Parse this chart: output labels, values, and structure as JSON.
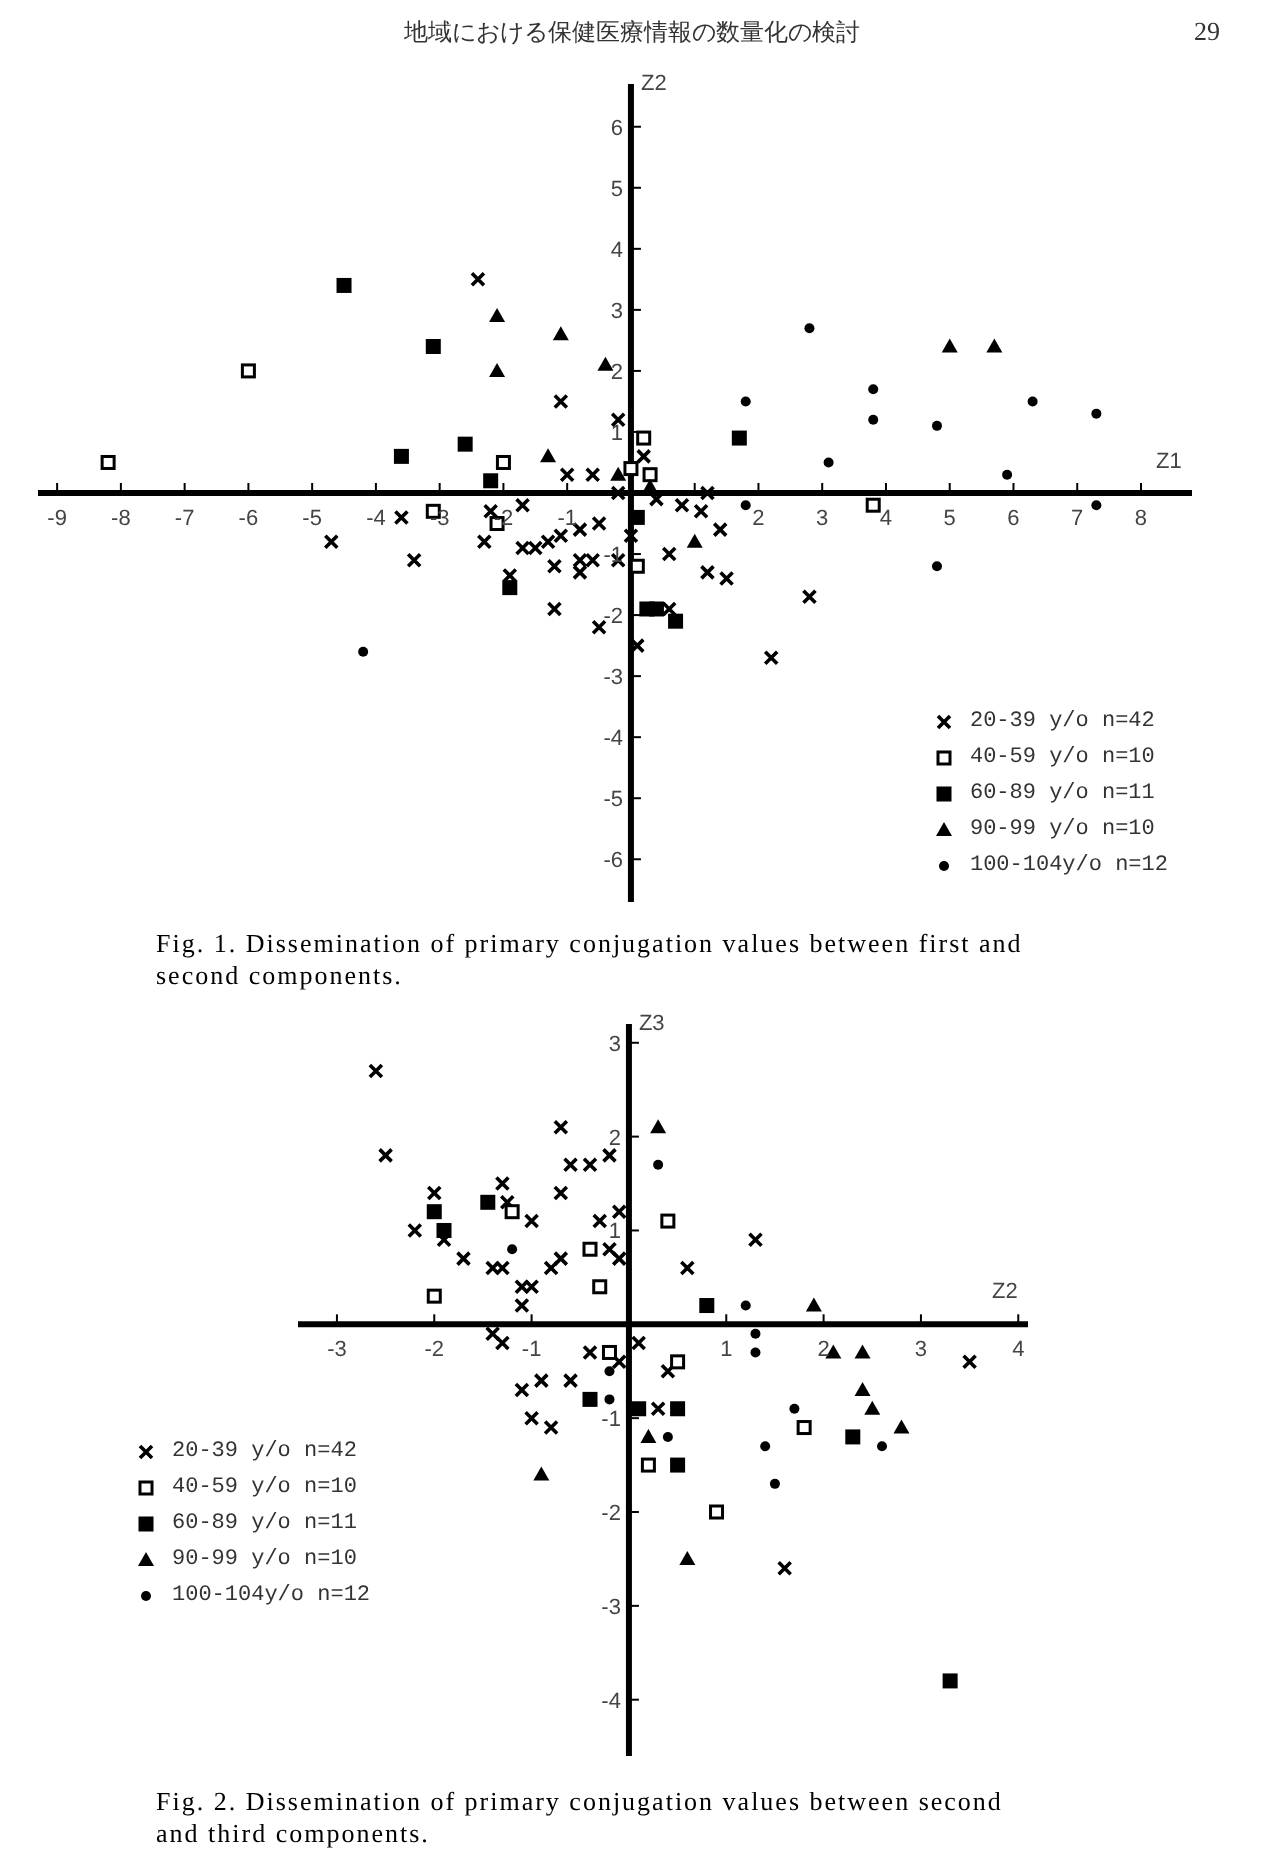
{
  "chart_data": [
    {
      "type": "scatter",
      "title": "地域における保健医療情報の数量化の検討",
      "subtitle": "Fig. 1.  Dissemination of primary conjugation values between first and second components.",
      "annotations": [
        "29"
      ],
      "xlabel": "Z1",
      "ylabel": "Z2",
      "xlim": [
        -9.3,
        8.8
      ],
      "ylim": [
        -6.7,
        6.7
      ],
      "xticks": [
        -9,
        -8,
        -7,
        -6,
        -5,
        -4,
        -3,
        -2,
        -1,
        {
          "value": 1,
          "label": null
        },
        2,
        3,
        4,
        5,
        6,
        7,
        8
      ],
      "yticks": [
        -6,
        -5,
        -4,
        -3,
        -2,
        -1,
        1,
        2,
        3,
        4,
        5,
        6
      ],
      "legend": "bottom right",
      "series": [
        {
          "name": "20-39 y/o n=42",
          "color": "#000000",
          "marker": "cross",
          "x": [
            -2.4,
            -1.1,
            -0.2,
            -1.0,
            -0.6,
            0.2,
            -4.7,
            -3.6,
            -3.4,
            -2.3,
            -2.2,
            -1.7,
            -1.7,
            -1.5,
            -1.3,
            -1.1,
            -0.8,
            -0.5,
            -1.2,
            -0.8,
            -0.6,
            -0.8,
            -0.2,
            -1.9,
            -1.2,
            -0.5,
            0.1,
            -0.2,
            0.4,
            0.8,
            1.1,
            1.2,
            0.6,
            1.4,
            1.2,
            1.5,
            0.6,
            2.8,
            2.2,
            0.0
          ],
          "values": [
            3.5,
            1.5,
            1.2,
            0.3,
            0.3,
            0.6,
            -0.8,
            -0.4,
            -1.1,
            -0.8,
            -0.3,
            -0.2,
            -0.9,
            -0.9,
            -0.8,
            -0.7,
            -0.6,
            -0.5,
            -1.2,
            -1.1,
            -1.1,
            -1.3,
            -1.1,
            -1.35,
            -1.9,
            -2.2,
            -2.5,
            0.0,
            -0.1,
            -0.2,
            -0.3,
            0.0,
            -1.0,
            -0.6,
            -1.3,
            -1.4,
            -1.9,
            -1.7,
            -2.7,
            -0.7
          ]
        },
        {
          "name": "40-59 y/o n=10",
          "color": "#ffffff",
          "marker": "square",
          "x": [
            -8.2,
            -6.0,
            -2.0,
            -3.1,
            -2.1,
            0.2,
            0.0,
            0.3,
            0.1,
            3.8
          ],
          "values": [
            0.5,
            2.0,
            0.5,
            -0.3,
            -0.5,
            0.9,
            0.4,
            0.3,
            -1.2,
            -0.2
          ]
        },
        {
          "name": "60-89 y/o n=11",
          "color": "#000000",
          "marker": "square",
          "x": [
            -4.5,
            -3.1,
            -2.6,
            -3.6,
            -2.2,
            -1.9,
            0.1,
            0.25,
            0.4,
            0.7,
            1.7
          ],
          "values": [
            3.4,
            2.4,
            0.8,
            0.6,
            0.2,
            -1.55,
            -0.4,
            -1.9,
            -1.9,
            -2.1,
            0.9
          ]
        },
        {
          "name": "90-99 y/o n=10",
          "color": "#000000",
          "marker": "triangle",
          "x": [
            -2.1,
            -1.1,
            -2.1,
            -0.4,
            -1.3,
            -0.2,
            0.3,
            1.0,
            5.0,
            5.7
          ],
          "values": [
            2.9,
            2.6,
            2.0,
            2.1,
            0.6,
            0.3,
            0.1,
            -0.8,
            2.4,
            2.4
          ]
        },
        {
          "name": "100-104y/o n=12",
          "color": "#000000",
          "marker": "circle",
          "x": [
            -4.2,
            2.8,
            1.8,
            3.1,
            3.8,
            3.8,
            4.8,
            6.3,
            7.3,
            5.9,
            7.3,
            4.8,
            1.8
          ],
          "values": [
            -2.6,
            2.7,
            1.5,
            0.5,
            1.7,
            1.2,
            1.1,
            1.5,
            1.3,
            0.3,
            -0.2,
            -1.2,
            -0.2
          ]
        }
      ]
    },
    {
      "type": "scatter",
      "subtitle": "Fig. 2.  Dissemination of primary conjugation values between second and third components.",
      "xlabel": "Z2",
      "ylabel": "Z3",
      "xlim": [
        -3.4,
        4.1
      ],
      "ylim": [
        -4.6,
        3.2
      ],
      "xticks": [
        -3,
        -2,
        -1,
        1,
        2,
        3,
        4
      ],
      "yticks": [
        -4,
        -3,
        -2,
        -1,
        1,
        2,
        3
      ],
      "legend": "bottom left",
      "series": [
        {
          "name": "20-39 y/o n=42",
          "color": "#000000",
          "marker": "cross",
          "x": [
            -2.6,
            -2.5,
            -0.7,
            -0.6,
            -0.4,
            -0.2,
            -1.3,
            -1.25,
            -0.7,
            -2.0,
            -1.0,
            -0.3,
            -0.1,
            -2.2,
            -1.9,
            -1.7,
            -1.4,
            -1.3,
            -1.1,
            -1.0,
            -0.8,
            -0.7,
            -0.2,
            -0.1,
            -1.1,
            1.3,
            0.6,
            -1.4,
            -1.3,
            -0.4,
            -0.1,
            0.1,
            -1.1,
            -0.9,
            -0.6,
            -1.0,
            -0.8,
            0.4,
            0.3,
            3.5,
            1.6
          ],
          "values": [
            2.7,
            1.8,
            2.1,
            1.7,
            1.7,
            1.8,
            1.5,
            1.3,
            1.4,
            1.4,
            1.1,
            1.1,
            1.2,
            1.0,
            0.9,
            0.7,
            0.6,
            0.6,
            0.4,
            0.4,
            0.6,
            0.7,
            0.8,
            0.7,
            0.2,
            0.9,
            0.6,
            -0.1,
            -0.2,
            -0.3,
            -0.4,
            -0.2,
            -0.7,
            -0.6,
            -0.6,
            -1.0,
            -1.1,
            -0.5,
            -0.9,
            -0.4,
            -2.6
          ]
        },
        {
          "name": "40-59 y/o n=10",
          "color": "#ffffff",
          "marker": "square",
          "x": [
            -2.0,
            -1.2,
            -0.4,
            -0.3,
            0.4,
            -0.2,
            0.5,
            0.2,
            0.9,
            1.8
          ],
          "values": [
            0.3,
            1.2,
            0.8,
            0.4,
            1.1,
            -0.3,
            -0.4,
            -1.5,
            -2.0,
            -1.1
          ]
        },
        {
          "name": "60-89 y/o n=11",
          "color": "#000000",
          "marker": "square",
          "x": [
            -2.0,
            -1.45,
            -1.9,
            0.8,
            -0.4,
            0.1,
            0.5,
            0.5,
            2.3,
            3.3
          ],
          "values": [
            1.2,
            1.3,
            1.0,
            0.2,
            -0.8,
            -0.9,
            -0.9,
            -1.5,
            -1.2,
            -3.8
          ]
        },
        {
          "name": "90-99 y/o n=10",
          "color": "#000000",
          "marker": "triangle",
          "x": [
            0.3,
            1.9,
            2.1,
            2.4,
            2.4,
            2.5,
            2.8,
            0.2,
            0.6,
            -0.9
          ],
          "values": [
            2.1,
            0.2,
            -0.3,
            -0.3,
            -0.7,
            -0.9,
            -1.1,
            -1.2,
            -2.5,
            -1.6
          ]
        },
        {
          "name": "100-104y/o n=12",
          "color": "#000000",
          "marker": "circle",
          "x": [
            0.3,
            -1.2,
            -0.2,
            -0.2,
            1.2,
            1.3,
            1.3,
            0.4,
            1.7,
            1.4,
            1.5,
            2.6
          ],
          "values": [
            1.7,
            0.8,
            -0.5,
            -0.8,
            0.2,
            -0.1,
            -0.3,
            -1.2,
            -0.9,
            -1.3,
            -1.7,
            -1.3
          ]
        }
      ]
    }
  ]
}
